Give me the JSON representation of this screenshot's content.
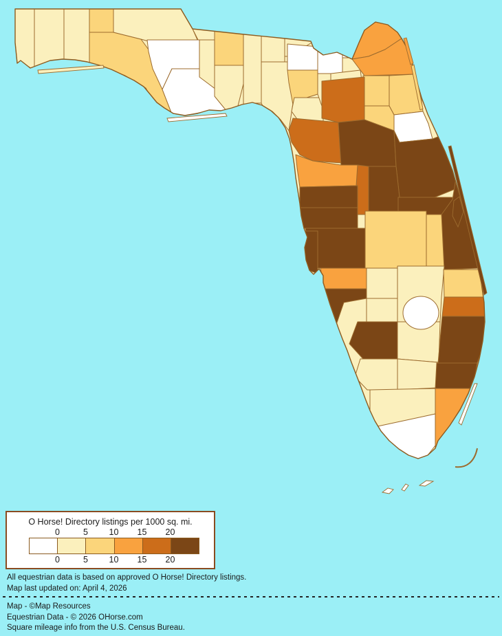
{
  "map": {
    "water_color": "#9BEFF6",
    "county_border_color": "#9C6B2E",
    "coast_border_color": "#8D5B20",
    "bins": {
      "b0": "#FFFFFF",
      "b1": "#FBF0BD",
      "b2": "#FBD57B",
      "b3": "#F9A23F",
      "b4": "#CC6D1A",
      "b5": "#7B4616"
    },
    "regions": [
      {
        "id": "region-01",
        "bin": "b1"
      },
      {
        "id": "region-02",
        "bin": "b1"
      },
      {
        "id": "region-03",
        "bin": "b1"
      },
      {
        "id": "region-04",
        "bin": "b2"
      },
      {
        "id": "region-05",
        "bin": "b2"
      },
      {
        "id": "region-06",
        "bin": "b1"
      },
      {
        "id": "region-07",
        "bin": "b0"
      },
      {
        "id": "region-08",
        "bin": "b0"
      },
      {
        "id": "region-09",
        "bin": "b1"
      },
      {
        "id": "region-10",
        "bin": "b2"
      },
      {
        "id": "region-11",
        "bin": "b1"
      },
      {
        "id": "region-12",
        "bin": "b1"
      },
      {
        "id": "region-13",
        "bin": "b1"
      },
      {
        "id": "region-14",
        "bin": "b1"
      },
      {
        "id": "region-15",
        "bin": "b1"
      },
      {
        "id": "region-16",
        "bin": "b0"
      },
      {
        "id": "region-17",
        "bin": "b0"
      },
      {
        "id": "region-18",
        "bin": "b2"
      },
      {
        "id": "region-19",
        "bin": "b1"
      },
      {
        "id": "region-20",
        "bin": "b1"
      },
      {
        "id": "region-21",
        "bin": "b1"
      },
      {
        "id": "region-22",
        "bin": "b1"
      },
      {
        "id": "region-23",
        "bin": "b0"
      },
      {
        "id": "region-24",
        "bin": "b3"
      },
      {
        "id": "region-25",
        "bin": "b3"
      },
      {
        "id": "region-26",
        "bin": "b2"
      },
      {
        "id": "region-27",
        "bin": "b2"
      },
      {
        "id": "region-28",
        "bin": "b2"
      },
      {
        "id": "region-29",
        "bin": "b0"
      },
      {
        "id": "region-30",
        "bin": "b4"
      },
      {
        "id": "region-31",
        "bin": "b4"
      },
      {
        "id": "region-32",
        "bin": "b5"
      },
      {
        "id": "region-33",
        "bin": "b3"
      },
      {
        "id": "region-34",
        "bin": "b5"
      },
      {
        "id": "region-35",
        "bin": "b5"
      },
      {
        "id": "region-36",
        "bin": "b4"
      },
      {
        "id": "region-37",
        "bin": "b5"
      },
      {
        "id": "region-38",
        "bin": "b5"
      },
      {
        "id": "region-39",
        "bin": "b5"
      },
      {
        "id": "region-40",
        "bin": "b5"
      },
      {
        "id": "region-41",
        "bin": "b5"
      },
      {
        "id": "region-42",
        "bin": "b5"
      },
      {
        "id": "region-43",
        "bin": "b2"
      },
      {
        "id": "region-44",
        "bin": "b2"
      },
      {
        "id": "region-45",
        "bin": "b3"
      },
      {
        "id": "region-46",
        "bin": "b5"
      },
      {
        "id": "region-47",
        "bin": "b1"
      },
      {
        "id": "region-48",
        "bin": "b1"
      },
      {
        "id": "region-49",
        "bin": "b1"
      },
      {
        "id": "region-50",
        "bin": "b5"
      },
      {
        "id": "region-51",
        "bin": "b1"
      },
      {
        "id": "region-52",
        "bin": "b1"
      },
      {
        "id": "region-53",
        "bin": "b1"
      },
      {
        "id": "region-54",
        "bin": "b2"
      },
      {
        "id": "region-55",
        "bin": "b4"
      },
      {
        "id": "region-56",
        "bin": "b5"
      },
      {
        "id": "region-57",
        "bin": "b5"
      },
      {
        "id": "region-58",
        "bin": "b3"
      },
      {
        "id": "region-59",
        "bin": "b1"
      },
      {
        "id": "region-60",
        "bin": "b0"
      }
    ],
    "islands": [
      {
        "id": "barrier-northeast",
        "bin": "b3"
      },
      {
        "id": "barrier-east-central",
        "bin": "b2"
      },
      {
        "id": "barrier-atlantic",
        "bin": "b5"
      },
      {
        "id": "cape-bump",
        "bin": "b5"
      },
      {
        "id": "barrier-southeast",
        "bin": "b0"
      },
      {
        "id": "barrier-panhandle",
        "bin": "b1"
      },
      {
        "id": "barrier-gulf",
        "bin": "b0"
      },
      {
        "id": "key-1",
        "bin": "b0"
      },
      {
        "id": "key-2",
        "bin": "b0"
      },
      {
        "id": "key-3",
        "bin": "b0"
      }
    ],
    "lake": {
      "id": "lake",
      "bin": "b0"
    }
  },
  "legend": {
    "title": "O Horse! Directory listings per 1000 sq. mi.",
    "ticks_top": [
      "0",
      "5",
      "10",
      "15",
      "20"
    ],
    "ticks_bottom": [
      "0",
      "5",
      "10",
      "15",
      "20"
    ],
    "swatch_colors": [
      "#FFFFFF",
      "#FBF0BD",
      "#FBD57B",
      "#F9A23F",
      "#CC6D1A",
      "#7B4616"
    ]
  },
  "notes": [
    "All equestrian data is based on approved O Horse! Directory listings.",
    "Map last updated on: April 4, 2026"
  ],
  "credits": [
    "Map - ©Map Resources",
    "Equestrian Data - © 2026 OHorse.com",
    "Square mileage info from the U.S. Census Bureau."
  ]
}
